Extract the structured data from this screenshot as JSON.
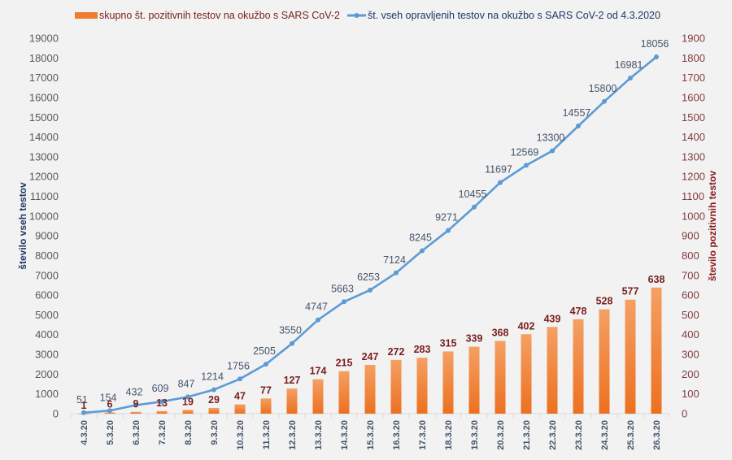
{
  "chart_data": {
    "type": "bar+line",
    "title": "",
    "categories": [
      "4.3.20",
      "5.3.20",
      "6.3.20",
      "7.3.20",
      "8.3.20",
      "9.3.20",
      "10.3.20",
      "11.3.20",
      "12.3.20",
      "13.3.20",
      "14.3.20",
      "15.3.20",
      "16.3.20",
      "17.3.20",
      "18.3.20",
      "19.3.20",
      "20.3.20",
      "21.3.20",
      "22.3.20",
      "23.3.20",
      "24.3.20",
      "25.3.20",
      "26.3.20"
    ],
    "series": [
      {
        "name": "skupno št. pozitivnih testov na okužbo s SARS CoV-2",
        "type": "bar",
        "axis": "right",
        "color": "#ed7d31",
        "values": [
          1,
          6,
          9,
          13,
          19,
          29,
          47,
          77,
          127,
          174,
          215,
          247,
          272,
          283,
          315,
          339,
          368,
          402,
          439,
          478,
          528,
          577,
          638
        ]
      },
      {
        "name": "št. vseh opravljenih testov na okužbo s SARS CoV-2 od 4.3.2020",
        "type": "line",
        "axis": "left",
        "color": "#5b9bd5",
        "values": [
          51,
          154,
          432,
          609,
          847,
          1214,
          1756,
          2505,
          3550,
          4747,
          5663,
          6253,
          7124,
          8245,
          9271,
          10455,
          11697,
          12569,
          13300,
          14557,
          15800,
          16981,
          18056
        ]
      }
    ],
    "ylabel": "število vseh testov",
    "y2label": "število pozitivnih testov",
    "xlabel": "",
    "ylim": [
      0,
      19000
    ],
    "y2lim": [
      0,
      1900
    ],
    "yticks": [
      0,
      1000,
      2000,
      3000,
      4000,
      5000,
      6000,
      7000,
      8000,
      9000,
      10000,
      11000,
      12000,
      13000,
      14000,
      15000,
      16000,
      17000,
      18000,
      19000
    ],
    "y2ticks": [
      0,
      100,
      200,
      300,
      400,
      500,
      600,
      700,
      800,
      900,
      1000,
      1100,
      1200,
      1300,
      1400,
      1500,
      1600,
      1700,
      1800,
      1900
    ],
    "grid": false,
    "legend_position": "top"
  }
}
